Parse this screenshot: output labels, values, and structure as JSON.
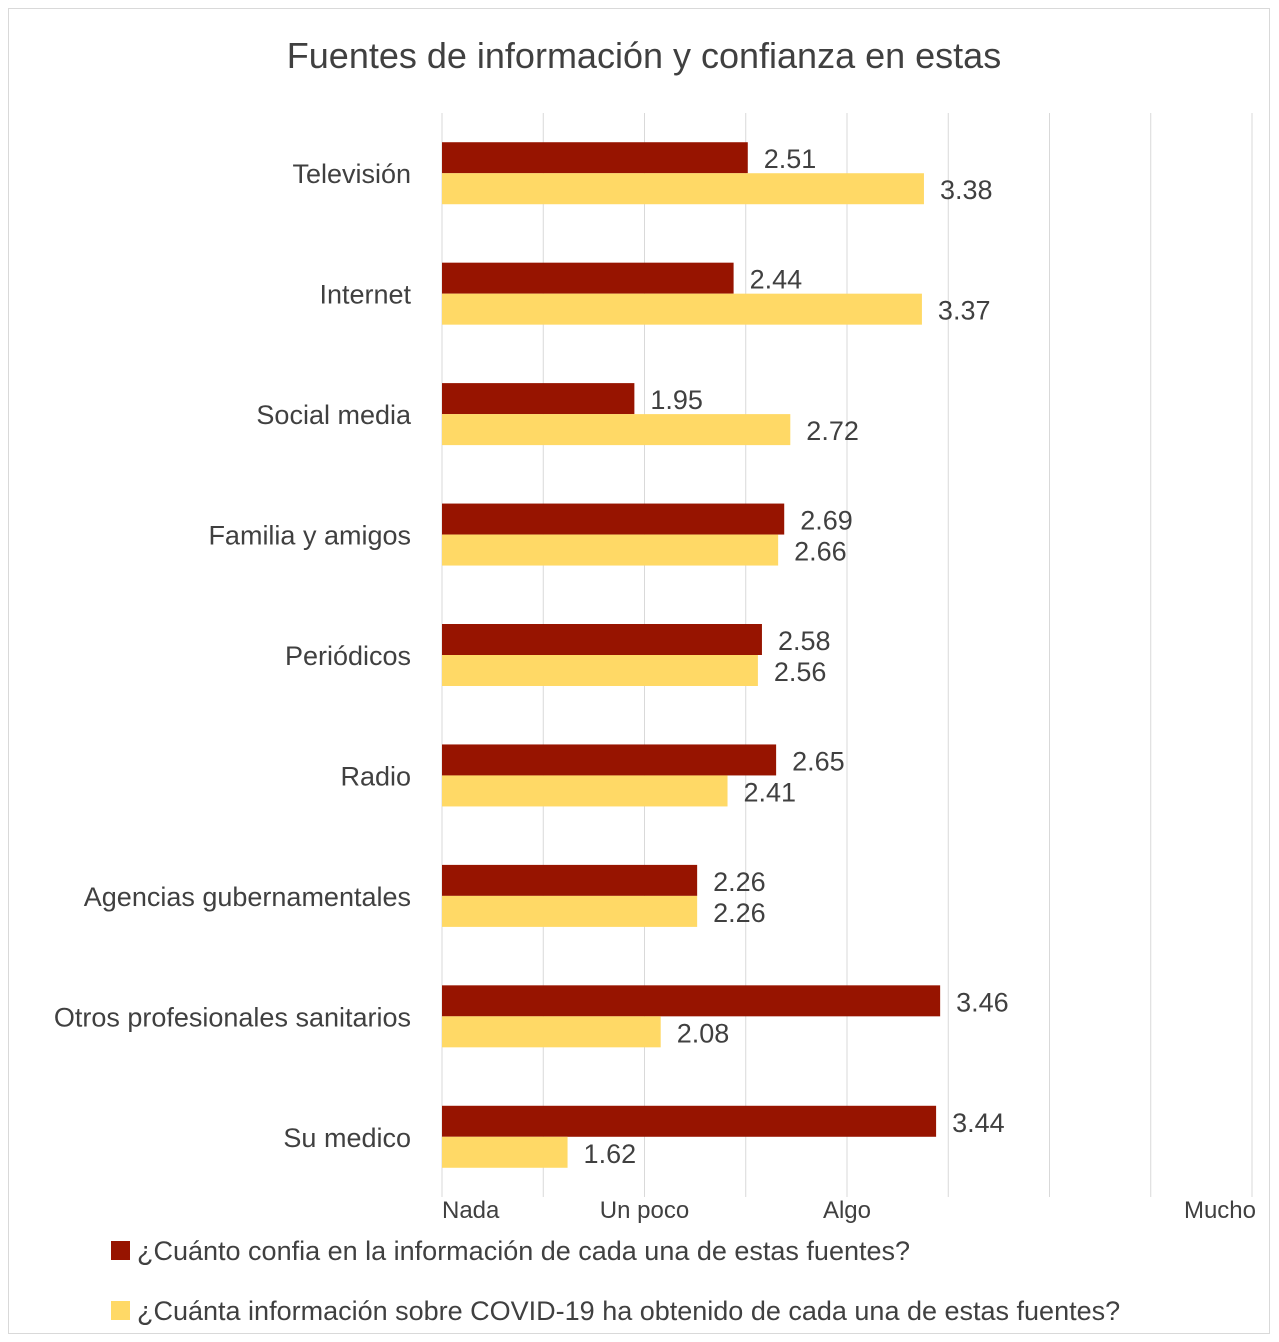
{
  "chart_data": {
    "type": "bar",
    "orientation": "horizontal",
    "title": "Fuentes de información y confianza en estas",
    "categories": [
      "Televisión",
      "Internet",
      "Social media",
      "Familia y amigos",
      "Periódicos",
      "Radio",
      "Agencias gubernamentales",
      "Otros profesionales sanitarios",
      "Su medico"
    ],
    "series": [
      {
        "name": "¿Cuánto confia en la información de cada una de estas fuentes?",
        "color": "#971400",
        "values": [
          2.51,
          2.44,
          1.95,
          2.69,
          2.58,
          2.65,
          2.26,
          3.46,
          3.44
        ],
        "labels": [
          "2.51",
          "2.44",
          "1.95",
          "2.69",
          "2.58",
          "2.65",
          "2.26",
          "3.46",
          "3.44"
        ]
      },
      {
        "name": "¿Cuánta información sobre COVID-19 ha obtenido de cada una de estas fuentes?",
        "color": "#ffd966",
        "values": [
          3.38,
          3.37,
          2.72,
          2.66,
          2.56,
          2.41,
          2.26,
          2.08,
          1.62
        ],
        "labels": [
          "3.38",
          "3.37",
          "2.72",
          "2.66",
          "2.56",
          "2.41",
          "2.26",
          "2.08",
          "1.62"
        ]
      }
    ],
    "xlim": [
      1,
      5
    ],
    "x_ticks": [
      {
        "value": 1,
        "label": "Nada"
      },
      {
        "value": 2,
        "label": "Un poco"
      },
      {
        "value": 3,
        "label": "Algo"
      },
      {
        "value": 4,
        "label": "Mucho"
      }
    ],
    "gridlines": [
      1,
      1.5,
      2,
      2.5,
      3,
      3.5,
      4,
      4.5,
      5
    ],
    "grid": true,
    "legend_position": "bottom"
  }
}
